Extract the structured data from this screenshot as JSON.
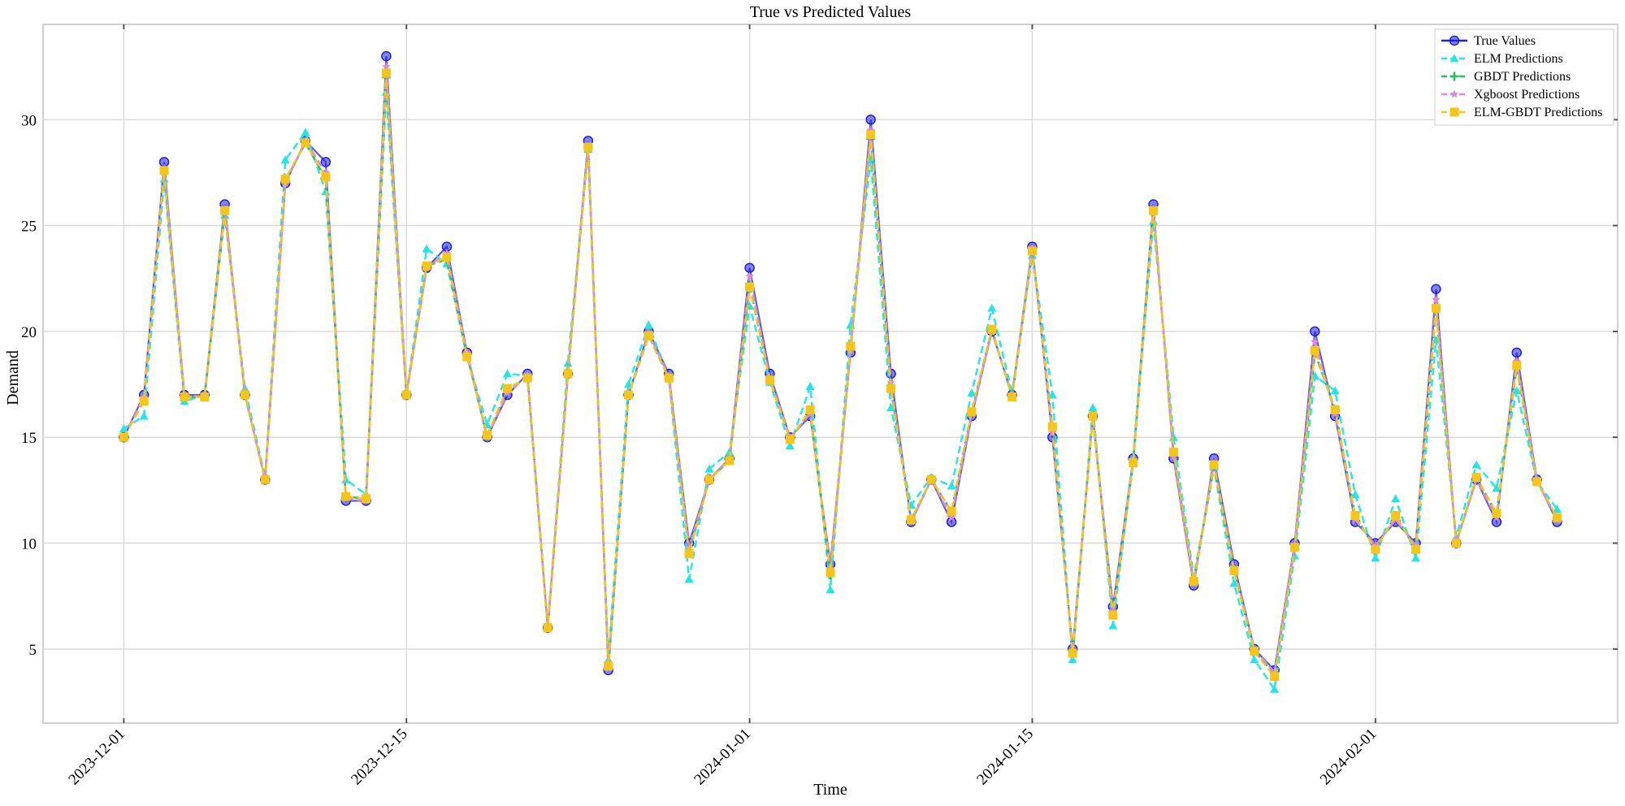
{
  "chart_data": {
    "type": "line",
    "title": "True vs Predicted Values",
    "xlabel": "Time",
    "ylabel": "Demand",
    "x_tick_labels": [
      "2023-12-01",
      "2023-12-15",
      "2024-01-01",
      "2024-01-15",
      "2024-02-01"
    ],
    "x_tick_dates": [
      "2023-12-01",
      "2023-12-15",
      "2024-01-01",
      "2024-01-15",
      "2024-02-01"
    ],
    "x_start_date": "2023-12-01",
    "x_end_date": "2024-02-10",
    "xlim": [
      "2023-11-27",
      "2024-02-13"
    ],
    "ylim": [
      1.5,
      34.5
    ],
    "y_ticks": [
      5,
      10,
      15,
      20,
      25,
      30
    ],
    "grid": true,
    "legend_position": "top-right",
    "series": [
      {
        "name": "True Values",
        "color": "#1f1fe0",
        "marker": "circle",
        "dash": "solid",
        "values": [
          15,
          17,
          28,
          17,
          17,
          26,
          17,
          13,
          27,
          29,
          28,
          12,
          12,
          33,
          17,
          23,
          24,
          19,
          15,
          17,
          18,
          6,
          18,
          29,
          4,
          17,
          20,
          18,
          10,
          13,
          14,
          23,
          18,
          15,
          16,
          9,
          19,
          30,
          18,
          11,
          13,
          11,
          16,
          20,
          17,
          24,
          15,
          5,
          16,
          7,
          14,
          26,
          14,
          8,
          14,
          9,
          5,
          4,
          10,
          20,
          16,
          11,
          10,
          11,
          10,
          22,
          10,
          13,
          11,
          19,
          13,
          11
        ]
      },
      {
        "name": "ELM Predictions",
        "color": "#22e6e6",
        "marker": "triangle",
        "dash": "dashed",
        "values": [
          15.4,
          16,
          27.2,
          16.7,
          17,
          25.5,
          17.3,
          13.1,
          28.1,
          29.4,
          26.6,
          13,
          12.3,
          31.3,
          17,
          23.9,
          23.2,
          18.8,
          15.6,
          18,
          17.9,
          6,
          18.5,
          28.6,
          4.5,
          17.5,
          20.3,
          17.8,
          8.3,
          13.5,
          14.3,
          21.2,
          17.6,
          14.6,
          17.4,
          7.8,
          20.3,
          28.1,
          16.4,
          11.8,
          13.1,
          12.7,
          17.1,
          21.1,
          17.1,
          23.6,
          17,
          4.5,
          16.4,
          6.1,
          14,
          25.2,
          15,
          8.4,
          13.6,
          8.1,
          4.5,
          3.1,
          9.4,
          17.9,
          17.2,
          12.3,
          9.3,
          12.1,
          9.3,
          19.6,
          10.3,
          13.7,
          12.6,
          17.2,
          12.9,
          11.6
        ]
      },
      {
        "name": "GBDT Predictions",
        "color": "#22c060",
        "marker": "plus",
        "dash": "dashed",
        "values": [
          15,
          16.8,
          27.5,
          16.9,
          16.9,
          25.7,
          17,
          13,
          27.1,
          28.9,
          27.2,
          12.2,
          12.1,
          32,
          17,
          23.1,
          23.4,
          18.9,
          15,
          17.3,
          17.8,
          6,
          18,
          28.7,
          4.2,
          17,
          19.8,
          17.8,
          9.6,
          13,
          13.9,
          22.2,
          17.7,
          14.9,
          16.2,
          8.5,
          19.2,
          29.1,
          17.3,
          11.1,
          13,
          11.5,
          16.2,
          20.1,
          16.9,
          23.8,
          15.5,
          4.8,
          16,
          6.6,
          13.8,
          25.7,
          14.3,
          8.2,
          13.6,
          8.7,
          4.9,
          3.8,
          9.8,
          19,
          16.3,
          11.3,
          9.7,
          11.3,
          9.7,
          21.1,
          10,
          13.1,
          11.4,
          18.3,
          12.9,
          11.2
        ]
      },
      {
        "name": "Xgboost Predictions",
        "color": "#dd88dd",
        "marker": "star",
        "dash": "dashed",
        "values": [
          15,
          16.9,
          27.7,
          17,
          16.9,
          25.8,
          17,
          13,
          27,
          29,
          27.5,
          12.1,
          12,
          32.5,
          17,
          23,
          23.7,
          19,
          15,
          17.1,
          17.9,
          6,
          18,
          28.8,
          4.1,
          17,
          19.9,
          17.9,
          9.8,
          13,
          14,
          22.6,
          17.8,
          15,
          16.1,
          8.8,
          19.1,
          29.5,
          17.6,
          11,
          13,
          11.2,
          16.1,
          20,
          17,
          23.9,
          15.2,
          4.9,
          16,
          6.8,
          13.9,
          25.8,
          14.1,
          8.1,
          13.8,
          8.8,
          5,
          3.9,
          9.9,
          19.5,
          16.1,
          11.1,
          9.9,
          11.1,
          9.9,
          21.5,
          10,
          13,
          11.2,
          18.6,
          13,
          11.1
        ]
      },
      {
        "name": "ELM-GBDT Predictions",
        "color": "#f5c518",
        "marker": "square",
        "dash": "dashed",
        "values": [
          15,
          16.7,
          27.6,
          16.9,
          16.9,
          25.7,
          17,
          13,
          27.2,
          28.9,
          27.3,
          12.2,
          12.1,
          32.2,
          17,
          23.1,
          23.5,
          18.8,
          15.1,
          17.3,
          17.8,
          6,
          18,
          28.7,
          4.2,
          17,
          19.8,
          17.8,
          9.5,
          13,
          13.9,
          22.1,
          17.7,
          14.9,
          16.3,
          8.6,
          19.3,
          29.3,
          17.3,
          11.1,
          13,
          11.5,
          16.2,
          20.1,
          16.9,
          23.8,
          15.5,
          4.8,
          16,
          6.6,
          13.8,
          25.7,
          14.3,
          8.2,
          13.7,
          8.7,
          4.9,
          3.7,
          9.8,
          19.1,
          16.3,
          11.3,
          9.7,
          11.3,
          9.7,
          21.1,
          10,
          13.1,
          11.4,
          18.4,
          12.9,
          11.2
        ]
      }
    ]
  }
}
